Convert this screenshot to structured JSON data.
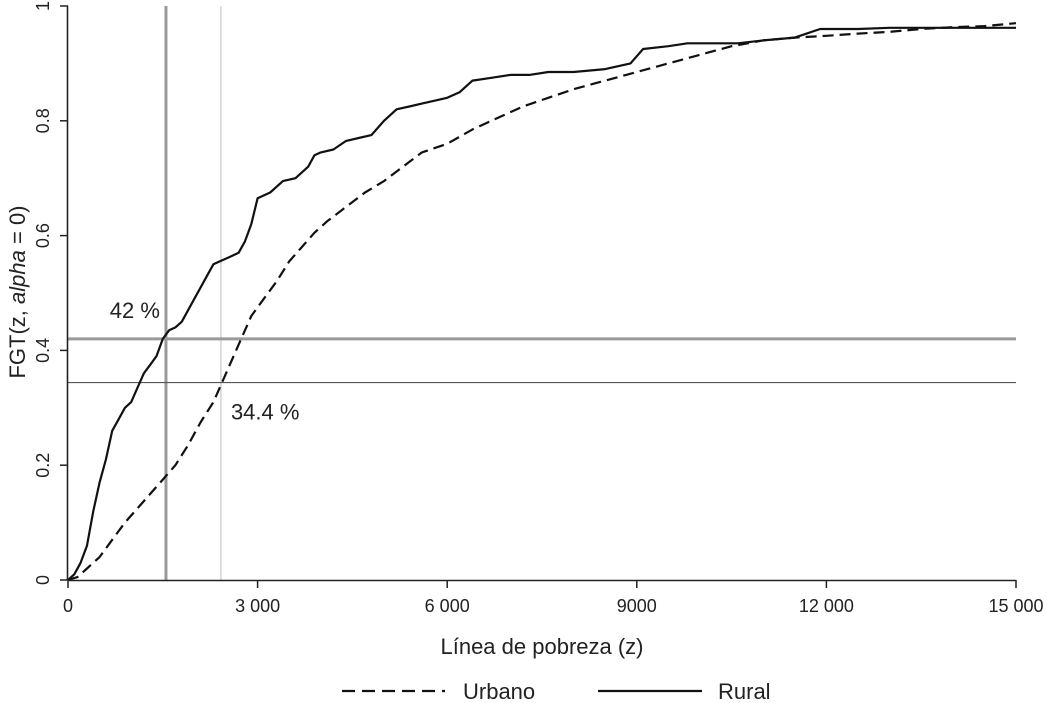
{
  "chart_data": {
    "type": "line",
    "xlabel": "Línea de pobreza (z)",
    "ylabel_main": "FGT(z, ",
    "ylabel_italic": "alpha",
    "ylabel_end": " = 0)",
    "xlim": [
      0,
      15000
    ],
    "ylim": [
      0,
      1
    ],
    "x_ticks": [
      0,
      3000,
      6000,
      9000,
      12000,
      15000
    ],
    "x_tick_labels": [
      "0",
      "3 000",
      "6 000",
      "9000",
      "12 000",
      "15 000"
    ],
    "y_ticks": [
      0,
      0.2,
      0.4,
      0.6,
      0.8,
      1
    ],
    "y_tick_labels": [
      "0",
      "0.2",
      "0.4",
      "0.6",
      "0.8",
      "1"
    ],
    "legend": {
      "placement": "bottom"
    },
    "series": [
      {
        "name": "Urbano",
        "style": "dashed",
        "color": "#111111",
        "x": [
          0,
          150,
          300,
          500,
          700,
          900,
          1100,
          1300,
          1500,
          1700,
          1900,
          2100,
          2300,
          2500,
          2700,
          2900,
          3100,
          3300,
          3500,
          3700,
          3900,
          4100,
          4400,
          4700,
          5000,
          5300,
          5600,
          6000,
          6400,
          6800,
          7200,
          7600,
          8000,
          8500,
          9000,
          9500,
          10000,
          10500,
          11000,
          11500,
          12000,
          12500,
          13000,
          13500,
          14000,
          14500,
          15000
        ],
        "y": [
          0,
          0.005,
          0.02,
          0.04,
          0.07,
          0.1,
          0.125,
          0.15,
          0.175,
          0.2,
          0.235,
          0.275,
          0.31,
          0.36,
          0.41,
          0.46,
          0.49,
          0.52,
          0.555,
          0.58,
          0.605,
          0.625,
          0.65,
          0.675,
          0.695,
          0.72,
          0.745,
          0.76,
          0.785,
          0.805,
          0.825,
          0.84,
          0.855,
          0.87,
          0.885,
          0.9,
          0.915,
          0.93,
          0.94,
          0.945,
          0.948,
          0.952,
          0.955,
          0.96,
          0.963,
          0.965,
          0.97
        ]
      },
      {
        "name": "Rural",
        "style": "solid",
        "color": "#111111",
        "x": [
          0,
          100,
          200,
          300,
          400,
          500,
          600,
          700,
          800,
          900,
          1000,
          1100,
          1200,
          1300,
          1400,
          1500,
          1600,
          1700,
          1800,
          1900,
          2000,
          2100,
          2200,
          2300,
          2400,
          2500,
          2600,
          2700,
          2800,
          2900,
          3000,
          3100,
          3200,
          3400,
          3600,
          3800,
          3900,
          4000,
          4200,
          4400,
          4600,
          4800,
          5000,
          5200,
          5400,
          5600,
          5800,
          6000,
          6200,
          6400,
          6700,
          7000,
          7300,
          7600,
          8000,
          8500,
          8900,
          9100,
          9500,
          9800,
          10200,
          10600,
          11000,
          11500,
          11900,
          12500,
          13000,
          13500,
          14000,
          14500,
          15000
        ],
        "y": [
          0,
          0.01,
          0.03,
          0.06,
          0.12,
          0.17,
          0.21,
          0.26,
          0.28,
          0.3,
          0.31,
          0.335,
          0.36,
          0.375,
          0.39,
          0.42,
          0.435,
          0.44,
          0.45,
          0.47,
          0.49,
          0.51,
          0.53,
          0.55,
          0.555,
          0.56,
          0.565,
          0.57,
          0.59,
          0.62,
          0.665,
          0.67,
          0.675,
          0.695,
          0.7,
          0.72,
          0.74,
          0.745,
          0.75,
          0.765,
          0.77,
          0.775,
          0.8,
          0.82,
          0.825,
          0.83,
          0.835,
          0.84,
          0.85,
          0.87,
          0.875,
          0.88,
          0.88,
          0.885,
          0.885,
          0.89,
          0.9,
          0.925,
          0.93,
          0.935,
          0.935,
          0.935,
          0.94,
          0.945,
          0.96,
          0.96,
          0.962,
          0.962,
          0.962,
          0.962,
          0.962
        ]
      }
    ],
    "reference_lines": {
      "vertical": [
        {
          "x": 1550,
          "weight": "thick"
        },
        {
          "x": 2420,
          "weight": "thin"
        }
      ],
      "horizontal": [
        {
          "y": 0.42,
          "weight": "thick"
        },
        {
          "y": 0.344,
          "weight": "thin"
        }
      ]
    },
    "annotations": [
      {
        "text": "42 %",
        "x": 1550,
        "y": 0.42,
        "position": "above-left"
      },
      {
        "text": "34.4 %",
        "x": 2420,
        "y": 0.344,
        "position": "below-right"
      }
    ]
  }
}
